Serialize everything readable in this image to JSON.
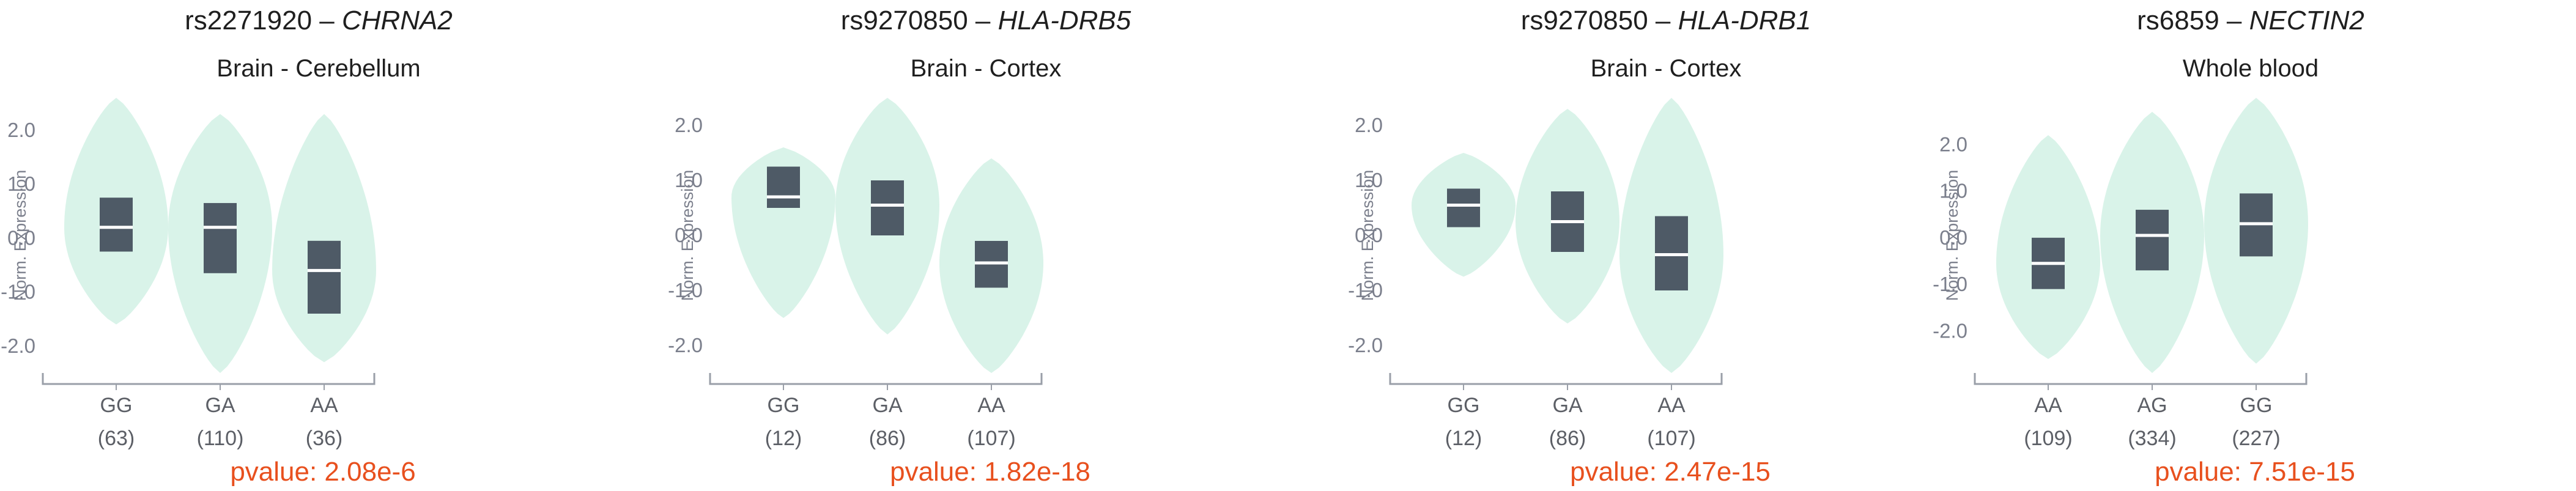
{
  "colors": {
    "violin": "#d9f3e9",
    "box": "#4e5a66",
    "median": "#ffffff",
    "axis": "#9a9fa8",
    "pvalue": "#e8501e"
  },
  "chart_data": [
    {
      "type": "violin",
      "snp": "rs2271920",
      "separator": " – ",
      "gene": "CHRNA2",
      "subtitle": "Brain - Cerebellum",
      "ylabel": "Norm. Expression",
      "yticks": [
        "2.0",
        "1.0",
        "0.0",
        "-1.0",
        "-2.0"
      ],
      "ylim": [
        -2.5,
        2.6
      ],
      "categories": [
        "GG",
        "GA",
        "AA"
      ],
      "counts": [
        "(63)",
        "(110)",
        "(36)"
      ],
      "pvalue_text": "pvalue: 2.08e-6",
      "violins": [
        {
          "min": -1.6,
          "max": 2.6,
          "q1": -0.25,
          "median": 0.2,
          "q3": 0.75
        },
        {
          "min": -2.5,
          "max": 2.3,
          "q1": -0.65,
          "median": 0.2,
          "q3": 0.65
        },
        {
          "min": -2.3,
          "max": 2.3,
          "q1": -1.4,
          "median": -0.6,
          "q3": -0.05
        }
      ]
    },
    {
      "type": "violin",
      "snp": "rs9270850",
      "separator": " – ",
      "gene": "HLA-DRB5",
      "subtitle": "Brain - Cortex",
      "ylabel": "Norm. Expression",
      "yticks": [
        "2.0",
        "1.0",
        "0.0",
        "-1.0",
        "-2.0"
      ],
      "ylim": [
        -2.5,
        2.5
      ],
      "categories": [
        "GG",
        "GA",
        "AA"
      ],
      "counts": [
        "(12)",
        "(86)",
        "(107)"
      ],
      "pvalue_text": "pvalue: 1.82e-18",
      "violins": [
        {
          "min": -1.5,
          "max": 1.6,
          "q1": 0.5,
          "median": 0.7,
          "q3": 1.25
        },
        {
          "min": -1.8,
          "max": 2.5,
          "q1": 0.0,
          "median": 0.55,
          "q3": 1.0
        },
        {
          "min": -2.5,
          "max": 1.4,
          "q1": -0.95,
          "median": -0.5,
          "q3": -0.1
        }
      ]
    },
    {
      "type": "violin",
      "snp": "rs9270850",
      "separator": " – ",
      "gene": "HLA-DRB1",
      "subtitle": "Brain - Cortex",
      "ylabel": "Norm. Expression",
      "yticks": [
        "2.0",
        "1.0",
        "0.0",
        "-1.0",
        "-2.0"
      ],
      "ylim": [
        -2.5,
        2.5
      ],
      "categories": [
        "GG",
        "GA",
        "AA"
      ],
      "counts": [
        "(12)",
        "(86)",
        "(107)"
      ],
      "pvalue_text": "pvalue: 2.47e-15",
      "violins": [
        {
          "min": -0.75,
          "max": 1.5,
          "q1": 0.15,
          "median": 0.55,
          "q3": 0.85
        },
        {
          "min": -1.6,
          "max": 2.3,
          "q1": -0.3,
          "median": 0.25,
          "q3": 0.8
        },
        {
          "min": -2.5,
          "max": 2.5,
          "q1": -1.0,
          "median": -0.35,
          "q3": 0.35
        }
      ]
    },
    {
      "type": "violin",
      "snp": "rs6859",
      "separator": " – ",
      "gene": "NECTIN2",
      "subtitle": "Whole blood",
      "ylabel": "Norm. Expression",
      "yticks": [
        "2.0",
        "1.0",
        "0.0",
        "-1.0",
        "-2.0"
      ],
      "ylim": [
        -2.9,
        3.0
      ],
      "categories": [
        "AA",
        "AG",
        "GG"
      ],
      "counts": [
        "(109)",
        "(334)",
        "(227)"
      ],
      "pvalue_text": "pvalue: 7.51e-15",
      "violins": [
        {
          "min": -2.6,
          "max": 2.2,
          "q1": -1.1,
          "median": -0.55,
          "q3": 0.0
        },
        {
          "min": -2.9,
          "max": 2.7,
          "q1": -0.7,
          "median": 0.05,
          "q3": 0.6
        },
        {
          "min": -2.7,
          "max": 3.0,
          "q1": -0.4,
          "median": 0.3,
          "q3": 0.95
        }
      ]
    }
  ]
}
